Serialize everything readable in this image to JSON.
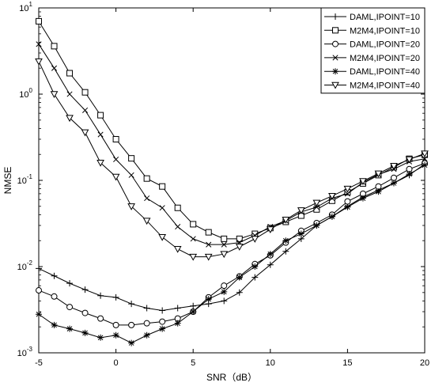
{
  "chart_data": {
    "type": "line",
    "xlabel": "SNR（dB）",
    "ylabel": "NMSE",
    "xlim": [
      -5,
      20
    ],
    "ylim": [
      0.001,
      10
    ],
    "yscale": "log",
    "xticks": [
      -5,
      0,
      5,
      10,
      15,
      20
    ],
    "yticks": [
      {
        "value": 0.001,
        "base": "10",
        "exp": "-3"
      },
      {
        "value": 0.01,
        "base": "10",
        "exp": "-2"
      },
      {
        "value": 0.1,
        "base": "10",
        "exp": "-1"
      },
      {
        "value": 1,
        "base": "10",
        "exp": "0"
      },
      {
        "value": 10,
        "base": "10",
        "exp": "1"
      }
    ],
    "grid": false,
    "legend_position": "top-right",
    "x": [
      -5,
      -4,
      -3,
      -2,
      -1,
      0,
      1,
      2,
      3,
      4,
      5,
      6,
      7,
      8,
      9,
      10,
      11,
      12,
      13,
      14,
      15,
      16,
      17,
      18,
      19,
      20
    ],
    "series": [
      {
        "name": "DAML,IPOINT=10",
        "marker": "plus",
        "values": [
          0.0095,
          0.0078,
          0.0064,
          0.0054,
          0.0046,
          0.0044,
          0.0037,
          0.0033,
          0.0031,
          0.0033,
          0.0035,
          0.0037,
          0.004,
          0.005,
          0.0075,
          0.0105,
          0.015,
          0.021,
          0.03,
          0.038,
          0.05,
          0.064,
          0.077,
          0.093,
          0.115,
          0.155
        ]
      },
      {
        "name": "M2M4,IPOINT=10",
        "marker": "square",
        "values": [
          7.0,
          3.6,
          1.75,
          1.05,
          0.57,
          0.3,
          0.18,
          0.105,
          0.085,
          0.048,
          0.031,
          0.025,
          0.021,
          0.021,
          0.024,
          0.028,
          0.033,
          0.039,
          0.046,
          0.058,
          0.073,
          0.092,
          0.115,
          0.142,
          0.178,
          0.198
        ]
      },
      {
        "name": "DAML,IPOINT=20",
        "marker": "circle",
        "values": [
          0.0053,
          0.0045,
          0.0034,
          0.0029,
          0.0025,
          0.0021,
          0.0021,
          0.0022,
          0.0023,
          0.0025,
          0.003,
          0.0044,
          0.006,
          0.0077,
          0.0107,
          0.0135,
          0.019,
          0.026,
          0.032,
          0.04,
          0.057,
          0.07,
          0.085,
          0.107,
          0.135,
          0.158
        ]
      },
      {
        "name": "M2M4,IPOINT=20",
        "marker": "x",
        "values": [
          3.8,
          2.0,
          1.0,
          0.65,
          0.34,
          0.175,
          0.115,
          0.062,
          0.048,
          0.029,
          0.021,
          0.018,
          0.018,
          0.019,
          0.023,
          0.029,
          0.034,
          0.043,
          0.049,
          0.062,
          0.07,
          0.095,
          0.117,
          0.135,
          0.165,
          0.178
        ]
      },
      {
        "name": "DAML,IPOINT=40",
        "marker": "star",
        "values": [
          0.0028,
          0.0021,
          0.0019,
          0.0017,
          0.0015,
          0.0016,
          0.0013,
          0.0016,
          0.0019,
          0.0022,
          0.003,
          0.0042,
          0.0051,
          0.0075,
          0.01,
          0.014,
          0.02,
          0.024,
          0.03,
          0.038,
          0.049,
          0.062,
          0.074,
          0.093,
          0.118,
          0.15
        ]
      },
      {
        "name": "M2M4,IPOINT=40",
        "marker": "triangle-down",
        "values": [
          2.4,
          1.0,
          0.53,
          0.36,
          0.16,
          0.11,
          0.05,
          0.034,
          0.022,
          0.016,
          0.013,
          0.013,
          0.014,
          0.017,
          0.021,
          0.027,
          0.035,
          0.045,
          0.055,
          0.066,
          0.08,
          0.098,
          0.12,
          0.147,
          0.175,
          0.205
        ]
      }
    ]
  }
}
